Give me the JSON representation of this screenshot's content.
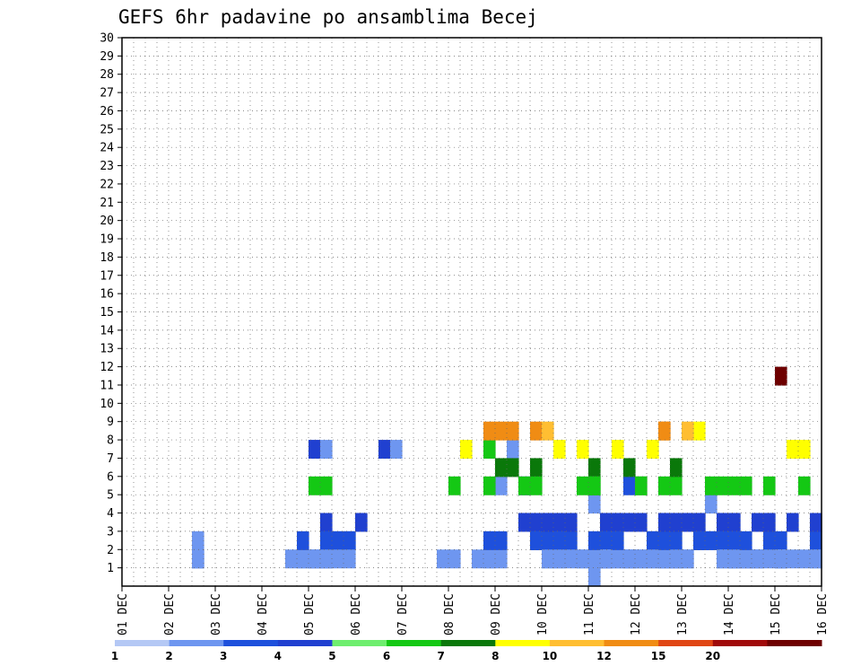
{
  "chart_data": {
    "type": "heatmap",
    "title": "GEFS 6hr padavine po ansamblima Becej",
    "x_tick_labels": [
      "01 DEC",
      "02 DEC",
      "03 DEC",
      "04 DEC",
      "05 DEC",
      "06 DEC",
      "07 DEC",
      "08 DEC",
      "09 DEC",
      "10 DEC",
      "11 DEC",
      "12 DEC",
      "13 DEC",
      "14 DEC",
      "15 DEC",
      "16 DEC"
    ],
    "y_tick_labels": [
      1,
      2,
      3,
      4,
      5,
      6,
      7,
      8,
      9,
      10,
      11,
      12,
      13,
      14,
      15,
      16,
      17,
      18,
      19,
      20,
      21,
      22,
      23,
      24,
      25,
      26,
      27,
      28,
      29,
      30
    ],
    "xlim": [
      0,
      60
    ],
    "ylim": [
      0,
      30
    ],
    "x_units": "6-hour steps from 01 DEC 00Z",
    "y_units": "ensemble member",
    "grid": true,
    "legend": {
      "placement": "bottom",
      "labels": [
        "1",
        "2",
        "3",
        "4",
        "5",
        "6",
        "7",
        "8",
        "10",
        "12",
        "15",
        "20"
      ],
      "colors": [
        "#b4c8f5",
        "#6e96f0",
        "#1e50dc",
        "#2040d0",
        "#6eee6e",
        "#14c814",
        "#0a780a",
        "#ffff00",
        "#ffbe32",
        "#f08c14",
        "#e04614",
        "#a00a0a",
        "#6e0000"
      ]
    },
    "cells": [
      [
        40,
        0,
        1
      ],
      [
        47,
        1,
        1
      ],
      [
        52,
        1,
        1
      ],
      [
        47,
        2,
        2
      ],
      [
        51,
        3,
        3
      ],
      [
        52,
        3,
        3
      ],
      [
        56,
        2,
        2
      ],
      [
        6,
        2,
        1
      ],
      [
        31,
        2,
        1
      ],
      [
        17,
        3,
        3
      ],
      [
        41,
        3,
        1
      ],
      [
        43,
        5,
        2
      ],
      [
        47,
        1,
        1
      ],
      [
        48,
        3,
        3
      ],
      [
        40,
        4,
        1
      ],
      [
        41,
        3,
        3
      ],
      [
        42,
        3,
        3
      ],
      [
        43,
        6,
        6
      ],
      [
        44,
        3,
        3
      ],
      [
        45,
        1,
        1
      ],
      [
        50,
        4,
        1
      ],
      [
        17,
        5,
        5
      ],
      [
        49,
        8,
        7
      ],
      [
        32,
        5,
        1
      ],
      [
        41,
        3,
        3
      ],
      [
        44,
        5,
        5
      ],
      [
        45,
        2,
        2
      ],
      [
        46,
        1,
        1
      ],
      [
        47,
        3,
        3
      ],
      [
        16,
        7,
        3
      ],
      [
        17,
        7,
        1
      ],
      [
        22,
        7,
        3
      ],
      [
        23,
        7,
        1
      ],
      [
        31,
        7,
        5
      ],
      [
        33,
        7,
        1
      ],
      [
        34,
        5,
        2
      ],
      [
        35,
        6,
        6
      ],
      [
        36,
        3,
        3
      ],
      [
        37,
        1,
        1
      ],
      [
        44,
        5,
        5
      ],
      [
        45,
        2,
        2
      ],
      [
        51,
        3,
        3
      ],
      [
        52,
        2,
        2
      ],
      [
        53,
        1,
        1
      ],
      [
        54,
        1,
        1
      ],
      [
        38,
        2,
        2
      ],
      [
        51,
        3,
        3
      ],
      [
        52,
        2,
        2
      ],
      [
        6,
        1,
        1
      ],
      [
        34,
        3,
        3
      ],
      [
        35,
        8,
        9
      ],
      [
        36,
        8,
        8
      ],
      [
        37,
        7,
        7
      ],
      [
        38,
        2,
        2
      ],
      [
        41,
        2,
        2
      ],
      [
        43,
        3,
        3
      ],
      [
        53,
        1,
        1
      ],
      [
        14,
        1,
        1
      ],
      [
        31,
        1,
        1
      ],
      [
        40,
        1,
        1
      ],
      [
        42,
        7,
        7
      ],
      [
        49,
        2,
        2
      ],
      [
        50,
        2,
        2
      ],
      [
        51,
        5,
        5
      ],
      [
        29,
        7,
        7
      ],
      [
        30,
        1,
        1
      ],
      [
        31,
        1,
        1
      ],
      [
        33,
        6,
        6
      ],
      [
        35,
        5,
        5
      ],
      [
        47,
        3,
        3
      ],
      [
        52,
        3,
        3
      ],
      [
        55,
        2,
        2
      ],
      [
        6,
        1,
        1
      ],
      [
        15,
        1,
        1
      ],
      [
        18,
        2,
        2
      ],
      [
        31,
        8,
        9
      ],
      [
        32,
        6,
        6
      ],
      [
        40,
        2,
        2
      ],
      [
        43,
        1,
        1
      ],
      [
        51,
        2,
        2
      ],
      [
        58,
        5,
        5
      ],
      [
        16,
        1,
        1
      ],
      [
        17,
        1,
        1
      ],
      [
        18,
        2,
        2
      ],
      [
        19,
        2,
        2
      ],
      [
        43,
        1,
        1
      ],
      [
        44,
        1,
        1
      ],
      [
        56,
        1,
        1
      ],
      [
        57,
        7,
        7
      ],
      [
        58,
        7,
        7
      ],
      [
        17,
        1,
        1
      ],
      [
        18,
        1,
        1
      ],
      [
        19,
        2,
        2
      ],
      [
        20,
        3,
        3
      ],
      [
        51,
        1,
        1
      ],
      [
        52,
        1,
        1
      ],
      [
        56,
        1,
        1
      ],
      [
        59,
        2,
        2
      ],
      [
        17,
        2,
        2
      ],
      [
        19,
        1,
        1
      ],
      [
        20,
        3,
        3
      ],
      [
        51,
        1,
        1
      ],
      [
        52,
        1,
        1
      ],
      [
        59,
        1,
        1
      ],
      [
        48,
        3,
        3
      ],
      [
        49,
        2,
        2
      ],
      [
        50,
        2,
        2
      ],
      [
        53,
        1,
        1
      ],
      [
        54,
        1,
        1
      ],
      [
        36,
        1,
        1
      ],
      [
        41,
        1,
        1
      ],
      [
        42,
        3,
        3
      ],
      [
        49,
        3,
        3
      ],
      [
        59,
        3,
        3
      ],
      [
        15,
        1,
        1
      ],
      [
        16,
        5,
        5
      ],
      [
        41,
        1,
        1
      ],
      [
        42,
        1,
        1
      ],
      [
        49,
        3,
        3
      ],
      [
        6,
        1,
        1
      ],
      [
        32,
        1,
        1
      ],
      [
        33,
        8,
        9
      ],
      [
        34,
        5,
        5
      ],
      [
        35,
        2,
        2
      ],
      [
        37,
        3,
        3
      ],
      [
        46,
        1,
        1
      ],
      [
        47,
        2,
        2
      ],
      [
        48,
        3,
        3
      ],
      [
        50,
        5,
        5
      ],
      [
        52,
        2,
        2
      ],
      [
        54,
        1,
        1
      ],
      [
        55,
        3,
        3
      ],
      [
        57,
        1,
        1
      ],
      [
        58,
        1,
        1
      ],
      [
        59,
        1,
        1
      ],
      [
        35,
        3,
        3
      ],
      [
        37,
        2,
        2
      ],
      [
        38,
        3,
        3
      ],
      [
        39,
        5,
        5
      ],
      [
        41,
        2,
        2
      ],
      [
        42,
        1,
        1
      ],
      [
        43,
        1,
        1
      ],
      [
        46,
        1,
        1
      ],
      [
        47,
        5,
        5
      ],
      [
        48,
        8,
        8
      ],
      [
        49,
        2,
        2
      ],
      [
        35,
        2,
        2
      ],
      [
        36,
        2,
        2
      ],
      [
        46,
        3,
        3
      ],
      [
        47,
        6,
        6
      ],
      [
        48,
        3,
        3
      ],
      [
        27,
        1,
        1
      ],
      [
        28,
        5,
        5
      ],
      [
        35,
        2,
        2
      ],
      [
        36,
        2,
        2
      ],
      [
        46,
        2,
        2
      ],
      [
        47,
        3,
        3
      ],
      [
        15,
        2,
        2
      ],
      [
        16,
        1,
        1
      ],
      [
        17,
        2,
        2
      ],
      [
        28,
        1,
        1
      ],
      [
        34,
        3,
        3
      ],
      [
        35,
        2,
        2
      ],
      [
        36,
        3,
        3
      ],
      [
        37,
        1,
        1
      ],
      [
        38,
        1,
        1
      ],
      [
        42,
        2,
        2
      ],
      [
        55,
        3,
        3
      ],
      [
        56,
        1,
        1
      ],
      [
        36,
        1,
        1
      ],
      [
        44,
        1,
        1
      ],
      [
        46,
        5,
        5
      ],
      [
        47,
        1,
        1
      ],
      [
        48,
        1,
        1
      ],
      [
        31,
        2,
        2
      ],
      [
        32,
        2,
        2
      ],
      [
        39,
        1,
        1
      ],
      [
        40,
        6,
        6
      ],
      [
        41,
        1,
        1
      ],
      [
        16,
        1,
        1
      ],
      [
        17,
        1,
        1
      ],
      [
        39,
        7,
        7
      ],
      [
        40,
        5,
        5
      ],
      [
        41,
        1,
        1
      ],
      [
        45,
        1,
        1
      ],
      [
        46,
        3,
        3
      ],
      [
        55,
        5,
        5
      ],
      [
        56,
        11,
        12
      ],
      [
        57,
        3,
        3
      ],
      [
        31,
        5,
        5
      ],
      [
        32,
        8,
        9
      ],
      [
        39,
        1,
        1
      ],
      [
        40,
        5,
        5
      ],
      [
        41,
        1,
        1
      ],
      [
        45,
        7,
        7
      ],
      [
        46,
        8,
        9
      ],
      [
        48,
        1,
        1
      ],
      [
        52,
        1,
        1
      ],
      [
        53,
        5,
        5
      ],
      [
        54,
        3,
        3
      ],
      [
        55,
        1,
        1
      ],
      [
        56,
        1,
        1
      ],
      [
        36,
        3,
        3
      ],
      [
        45,
        7,
        7
      ],
      [
        46,
        8,
        9
      ],
      [
        40,
        5,
        5
      ],
      [
        52,
        5,
        5
      ],
      [
        53,
        2,
        2
      ]
    ]
  }
}
